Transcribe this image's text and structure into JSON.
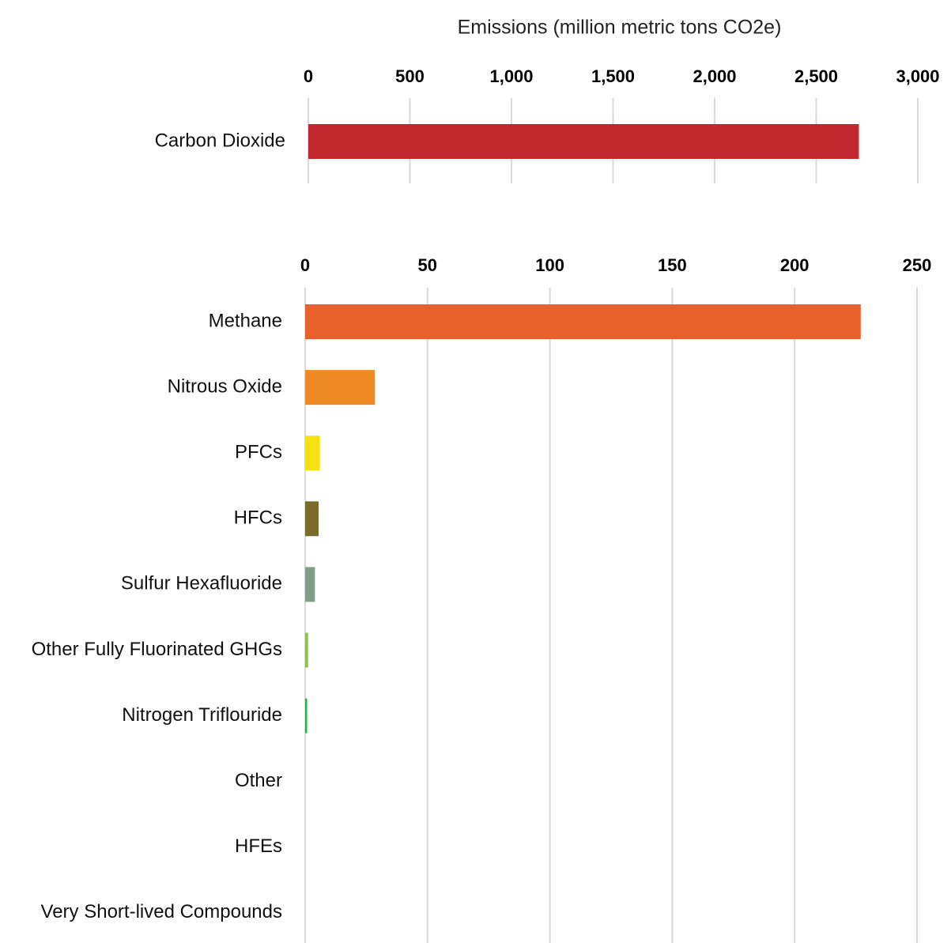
{
  "chart_data": [
    {
      "type": "bar",
      "orientation": "horizontal",
      "title": "",
      "xlabel": "Emissions (million metric tons CO2e)",
      "ylabel": "",
      "xlim": [
        0,
        3000
      ],
      "tick_values": [
        0,
        500,
        1000,
        1500,
        2000,
        2500,
        3000
      ],
      "tick_labels": [
        "0",
        "500",
        "1,000",
        "1,500",
        "2,000",
        "2,500",
        "3,000"
      ],
      "grid": true,
      "legend": "none",
      "categories": [
        "Carbon Dioxide"
      ],
      "values": [
        2710
      ],
      "colors": [
        "#c1272d"
      ]
    },
    {
      "type": "bar",
      "orientation": "horizontal",
      "title": "",
      "xlabel": "",
      "ylabel": "",
      "xlim": [
        0,
        250
      ],
      "tick_values": [
        0,
        50,
        100,
        150,
        200,
        250
      ],
      "tick_labels": [
        "0",
        "50",
        "100",
        "150",
        "200",
        "250"
      ],
      "grid": true,
      "legend": "none",
      "categories": [
        "Methane",
        "Nitrous Oxide",
        "PFCs",
        "HFCs",
        "Sulfur Hexafluoride",
        "Other Fully Fluorinated GHGs",
        "Nitrogen Triflouride",
        "Other",
        "HFEs",
        "Very Short-lived Compounds"
      ],
      "values": [
        227,
        28.5,
        6,
        5.5,
        4,
        1.2,
        0.8,
        0,
        0,
        0
      ],
      "colors": [
        "#e8612a",
        "#f08a24",
        "#f5e010",
        "#7a6b28",
        "#7f9e86",
        "#8bc34a",
        "#2eb04b",
        "#cccccc",
        "#cccccc",
        "#cccccc"
      ]
    }
  ]
}
